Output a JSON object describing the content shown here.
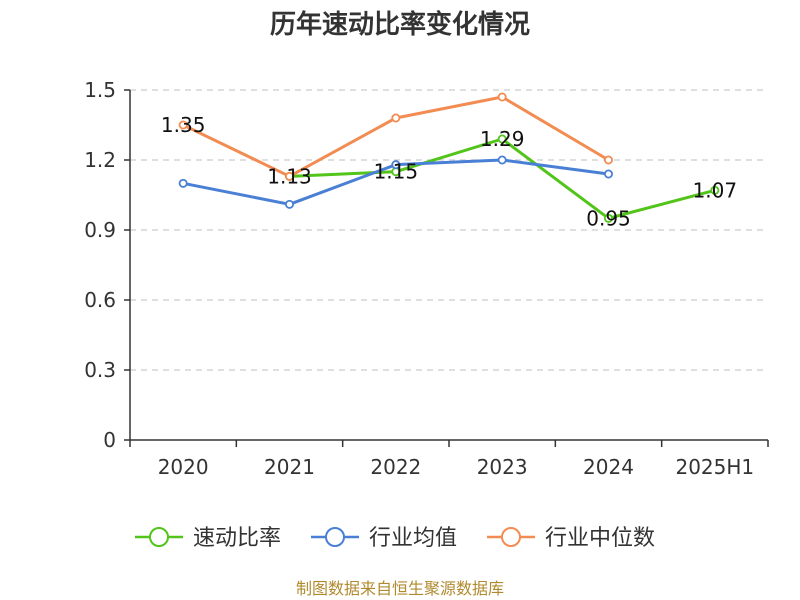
{
  "chart_data": {
    "type": "line",
    "title": "历年速动比率变化情况",
    "categories": [
      "2020",
      "2021",
      "2022",
      "2023",
      "2024",
      "2025H1"
    ],
    "y_ticks": [
      "0",
      "0.3",
      "0.6",
      "0.9",
      "1.2",
      "1.5"
    ],
    "ylim": [
      0,
      1.5
    ],
    "grid": true,
    "legend_position": "bottom",
    "series": [
      {
        "name": "速动比率",
        "color": "#52c41a",
        "values": [
          null,
          1.13,
          1.15,
          1.29,
          0.95,
          1.07
        ],
        "labels": [
          null,
          "1.13",
          "1.15",
          "1.29",
          "0.95",
          "1.07"
        ]
      },
      {
        "name": "行业均值",
        "color": "#4a7fd6",
        "values": [
          1.1,
          1.01,
          1.18,
          1.2,
          1.14,
          null
        ]
      },
      {
        "name": "行业中位数",
        "color": "#f28c52",
        "values": [
          1.35,
          1.13,
          1.38,
          1.47,
          1.2,
          null
        ],
        "labels": [
          "1.35",
          null,
          null,
          null,
          null,
          null
        ]
      }
    ]
  },
  "source_text": "制图数据来自恒生聚源数据库"
}
